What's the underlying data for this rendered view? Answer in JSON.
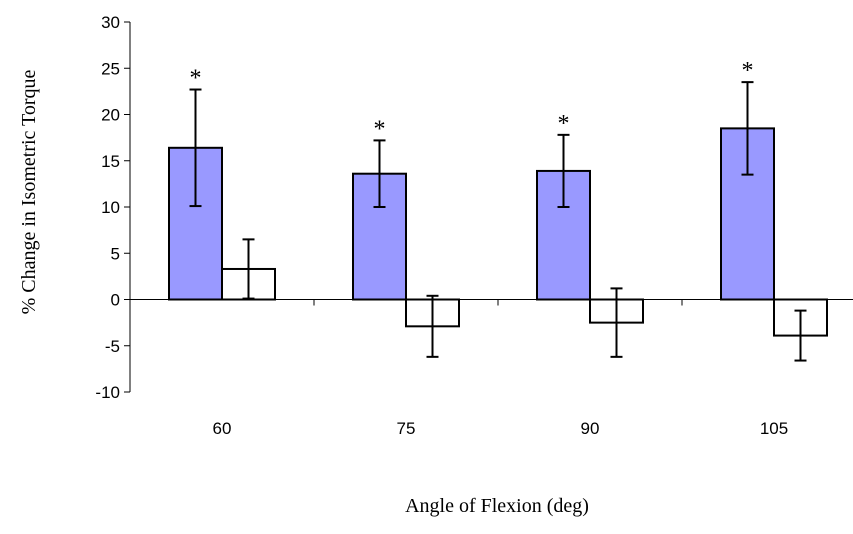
{
  "chart_data": {
    "type": "bar",
    "title": "",
    "xlabel": "Angle of Flexion (deg)",
    "ylabel": "% Change in Isometric Torque",
    "categories": [
      "60",
      "75",
      "90",
      "105"
    ],
    "ylim": [
      -10,
      30
    ],
    "yticks": [
      "30",
      "25",
      "20",
      "15",
      "10",
      "5",
      "0",
      "-5",
      "-10"
    ],
    "grid": false,
    "legend": "none",
    "series": [
      {
        "color": "#9999ff",
        "values": [
          16.4,
          13.6,
          13.9,
          18.5
        ],
        "error": [
          6.3,
          3.6,
          3.9,
          5.0
        ],
        "significance": [
          "*",
          "*",
          "*",
          "*"
        ]
      },
      {
        "color": "#ffffff",
        "values": [
          3.3,
          -2.9,
          -2.5,
          -3.9
        ],
        "error": [
          3.2,
          3.3,
          3.7,
          2.7
        ]
      }
    ]
  }
}
